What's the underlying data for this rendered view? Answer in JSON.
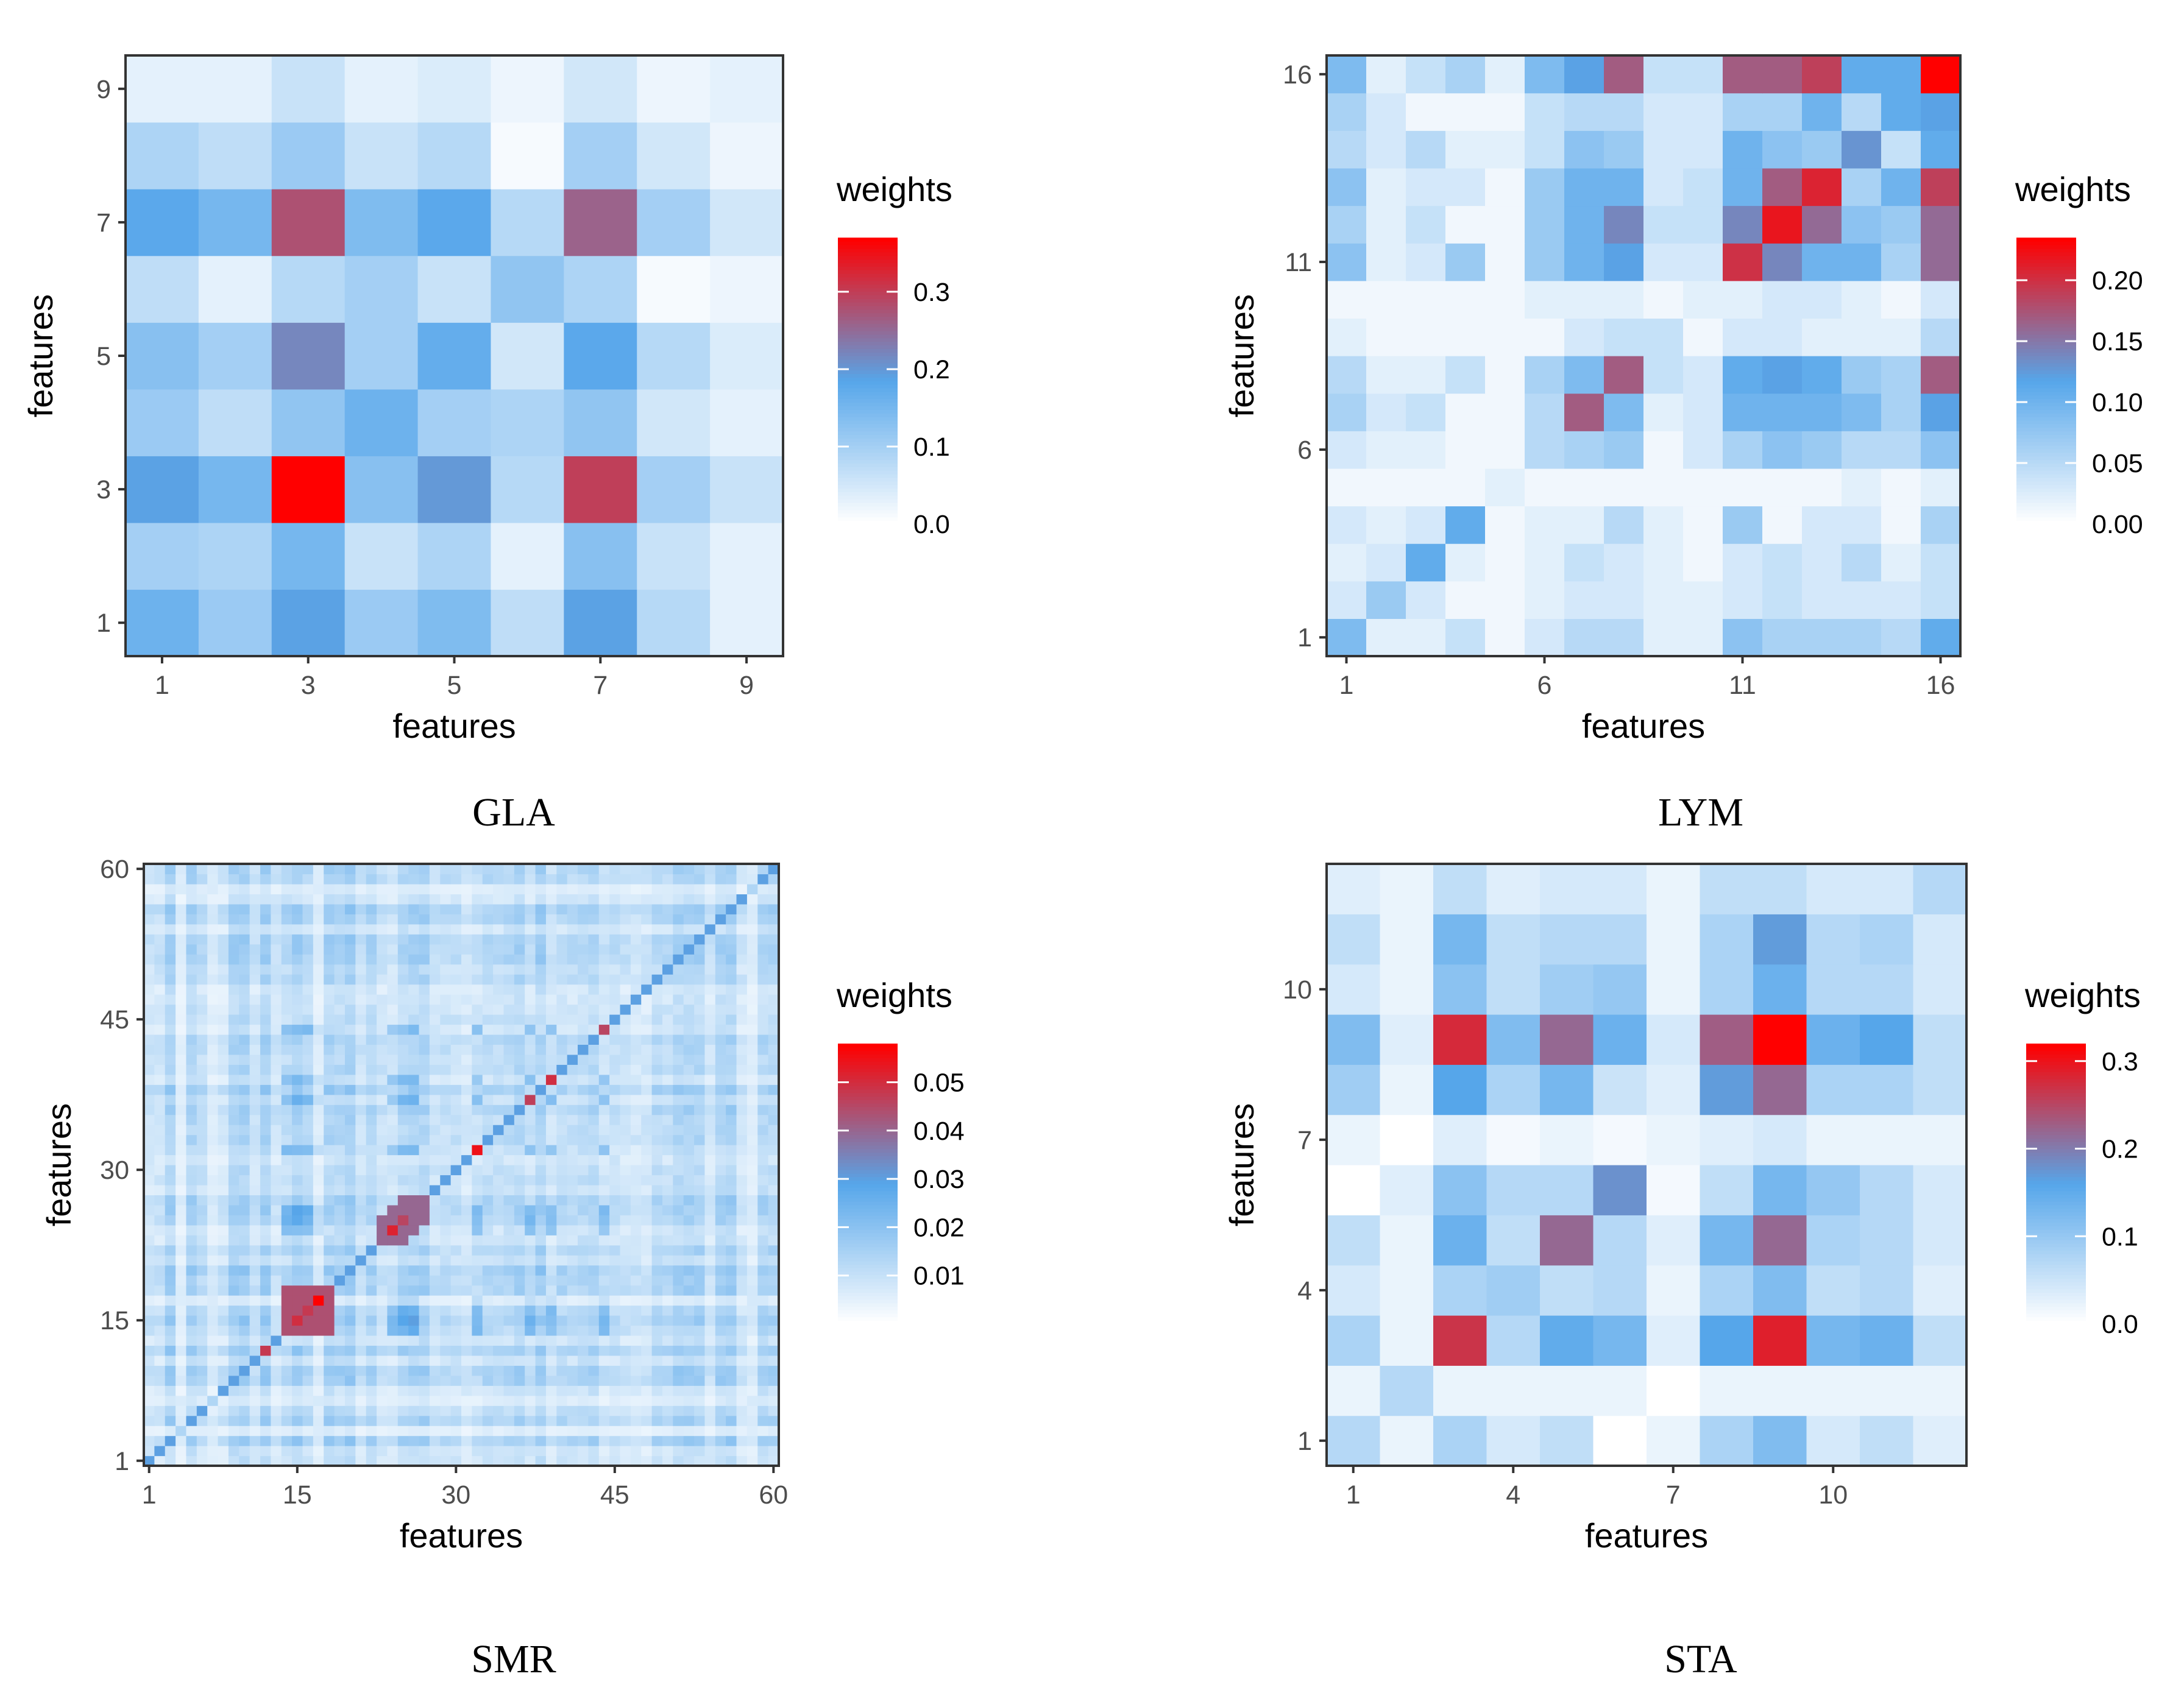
{
  "colors": {
    "low": "#ffffff",
    "mid": "#56a6ea",
    "high": "#ff0000",
    "panel_border": "#333333"
  },
  "chart_data": [
    {
      "type": "heatmap",
      "caption": "GLA",
      "xlabel": "features",
      "ylabel": "features",
      "legend_title": "weights",
      "n": 9,
      "xticks": [
        1,
        3,
        5,
        7,
        9
      ],
      "yticks": [
        1,
        3,
        5,
        7,
        9
      ],
      "legend_ticks": [
        0.0,
        0.1,
        0.2,
        0.3
      ],
      "legend_tick_labels": [
        "0.0",
        "0.1",
        "0.2",
        "0.3"
      ],
      "range": [
        0,
        0.37
      ],
      "values": [
        [
          0.16,
          0.11,
          0.19,
          0.11,
          0.14,
          0.07,
          0.19,
          0.08,
          0.03
        ],
        [
          0.1,
          0.09,
          0.15,
          0.06,
          0.09,
          0.03,
          0.13,
          0.06,
          0.03
        ],
        [
          0.19,
          0.15,
          0.37,
          0.13,
          0.2,
          0.08,
          0.3,
          0.1,
          0.06
        ],
        [
          0.11,
          0.07,
          0.12,
          0.16,
          0.1,
          0.09,
          0.12,
          0.05,
          0.03
        ],
        [
          0.13,
          0.1,
          0.22,
          0.1,
          0.17,
          0.05,
          0.18,
          0.08,
          0.04
        ],
        [
          0.07,
          0.03,
          0.08,
          0.1,
          0.06,
          0.12,
          0.09,
          0.01,
          0.02
        ],
        [
          0.18,
          0.15,
          0.28,
          0.14,
          0.18,
          0.08,
          0.26,
          0.1,
          0.05
        ],
        [
          0.09,
          0.07,
          0.11,
          0.06,
          0.08,
          0.01,
          0.1,
          0.05,
          0.02
        ],
        [
          0.03,
          0.03,
          0.06,
          0.03,
          0.04,
          0.02,
          0.05,
          0.02,
          0.03
        ]
      ]
    },
    {
      "type": "heatmap",
      "caption": "LYM",
      "xlabel": "features",
      "ylabel": "features",
      "legend_title": "weights",
      "n": 16,
      "xticks": [
        1,
        6,
        11,
        16
      ],
      "yticks": [
        1,
        6,
        11,
        16
      ],
      "legend_ticks": [
        0.0,
        0.05,
        0.1,
        0.15,
        0.2
      ],
      "legend_tick_labels": [
        "0.00",
        "0.05",
        "0.10",
        "0.15",
        "0.20"
      ],
      "range": [
        0,
        0.235
      ],
      "values": [
        [
          0.09,
          0.02,
          0.02,
          0.04,
          0.01,
          0.03,
          0.05,
          0.05,
          0.02,
          0.02,
          0.08,
          0.06,
          0.06,
          0.06,
          0.05,
          0.11
        ],
        [
          0.03,
          0.07,
          0.03,
          0.01,
          0.01,
          0.02,
          0.03,
          0.03,
          0.02,
          0.02,
          0.03,
          0.04,
          0.03,
          0.03,
          0.03,
          0.04
        ],
        [
          0.02,
          0.03,
          0.11,
          0.02,
          0.01,
          0.02,
          0.04,
          0.03,
          0.02,
          0.01,
          0.03,
          0.04,
          0.03,
          0.05,
          0.02,
          0.04
        ],
        [
          0.03,
          0.02,
          0.03,
          0.11,
          0.01,
          0.02,
          0.02,
          0.05,
          0.02,
          0.01,
          0.07,
          0.01,
          0.03,
          0.03,
          0.01,
          0.06
        ],
        [
          0.01,
          0.01,
          0.01,
          0.01,
          0.02,
          0.01,
          0.01,
          0.01,
          0.01,
          0.01,
          0.01,
          0.01,
          0.01,
          0.02,
          0.01,
          0.02
        ],
        [
          0.03,
          0.02,
          0.02,
          0.01,
          0.01,
          0.05,
          0.06,
          0.07,
          0.01,
          0.03,
          0.06,
          0.08,
          0.07,
          0.05,
          0.05,
          0.08
        ],
        [
          0.06,
          0.03,
          0.04,
          0.01,
          0.01,
          0.05,
          0.17,
          0.09,
          0.02,
          0.03,
          0.1,
          0.1,
          0.1,
          0.09,
          0.06,
          0.12
        ],
        [
          0.05,
          0.02,
          0.02,
          0.04,
          0.01,
          0.06,
          0.09,
          0.17,
          0.04,
          0.03,
          0.11,
          0.12,
          0.11,
          0.07,
          0.06,
          0.17
        ],
        [
          0.02,
          0.01,
          0.01,
          0.01,
          0.01,
          0.01,
          0.03,
          0.04,
          0.04,
          0.01,
          0.03,
          0.03,
          0.02,
          0.02,
          0.02,
          0.05
        ],
        [
          0.01,
          0.01,
          0.01,
          0.01,
          0.01,
          0.02,
          0.02,
          0.02,
          0.01,
          0.02,
          0.02,
          0.03,
          0.03,
          0.02,
          0.01,
          0.03
        ],
        [
          0.08,
          0.02,
          0.03,
          0.07,
          0.01,
          0.07,
          0.1,
          0.12,
          0.03,
          0.03,
          0.2,
          0.14,
          0.1,
          0.1,
          0.06,
          0.16
        ],
        [
          0.06,
          0.02,
          0.04,
          0.01,
          0.01,
          0.07,
          0.1,
          0.14,
          0.04,
          0.04,
          0.14,
          0.22,
          0.16,
          0.08,
          0.07,
          0.16
        ],
        [
          0.08,
          0.02,
          0.03,
          0.03,
          0.01,
          0.07,
          0.1,
          0.1,
          0.03,
          0.04,
          0.1,
          0.17,
          0.21,
          0.06,
          0.1,
          0.19
        ],
        [
          0.05,
          0.03,
          0.05,
          0.02,
          0.02,
          0.04,
          0.08,
          0.07,
          0.03,
          0.03,
          0.1,
          0.08,
          0.07,
          0.13,
          0.04,
          0.11
        ],
        [
          0.06,
          0.03,
          0.01,
          0.01,
          0.01,
          0.04,
          0.05,
          0.05,
          0.03,
          0.03,
          0.06,
          0.06,
          0.1,
          0.05,
          0.11,
          0.12
        ],
        [
          0.09,
          0.02,
          0.04,
          0.06,
          0.02,
          0.09,
          0.12,
          0.17,
          0.04,
          0.04,
          0.17,
          0.17,
          0.19,
          0.11,
          0.11,
          0.235
        ]
      ]
    },
    {
      "type": "heatmap",
      "caption": "SMR",
      "xlabel": "features",
      "ylabel": "features",
      "legend_title": "weights",
      "n": 60,
      "xticks": [
        1,
        15,
        30,
        45,
        60
      ],
      "yticks": [
        1,
        15,
        30,
        45,
        60
      ],
      "legend_ticks": [
        0.01,
        0.02,
        0.03,
        0.04,
        0.05
      ],
      "legend_tick_labels": [
        "0.01",
        "0.02",
        "0.03",
        "0.04",
        "0.05"
      ],
      "range": [
        0,
        0.058
      ],
      "values_note": "60x60 correlation-style weights: base ~0.01-0.03 with a red block near features 14-18, 24-27, 32, 36-39, 44 and a thin diagonal",
      "peaks": [
        {
          "x": 17,
          "y": 17,
          "value": 0.058
        },
        {
          "x": 15,
          "y": 15,
          "value": 0.05
        },
        {
          "x": 16,
          "y": 16,
          "value": 0.048
        },
        {
          "x": 24,
          "y": 24,
          "value": 0.052
        },
        {
          "x": 25,
          "y": 25,
          "value": 0.046
        },
        {
          "x": 32,
          "y": 32,
          "value": 0.055
        },
        {
          "x": 37,
          "y": 37,
          "value": 0.047
        },
        {
          "x": 39,
          "y": 39,
          "value": 0.05
        },
        {
          "x": 44,
          "y": 44,
          "value": 0.046
        },
        {
          "x": 12,
          "y": 12,
          "value": 0.048
        }
      ]
    },
    {
      "type": "heatmap",
      "caption": "STA",
      "xlabel": "features",
      "ylabel": "features",
      "legend_title": "weights",
      "n": 12,
      "xticks": [
        1,
        4,
        7,
        10
      ],
      "yticks": [
        1,
        4,
        7,
        10
      ],
      "legend_ticks": [
        0.0,
        0.1,
        0.2,
        0.3
      ],
      "legend_tick_labels": [
        "0.0",
        "0.1",
        "0.2",
        "0.3"
      ],
      "range": [
        0,
        0.32
      ],
      "values": [
        [
          0.07,
          0.02,
          0.08,
          0.04,
          0.06,
          0.0,
          0.02,
          0.08,
          0.12,
          0.04,
          0.06,
          0.03
        ],
        [
          0.02,
          0.07,
          0.02,
          0.02,
          0.02,
          0.02,
          0.0,
          0.02,
          0.02,
          0.02,
          0.02,
          0.02
        ],
        [
          0.08,
          0.02,
          0.27,
          0.07,
          0.15,
          0.13,
          0.03,
          0.16,
          0.29,
          0.13,
          0.14,
          0.06
        ],
        [
          0.04,
          0.02,
          0.08,
          0.09,
          0.06,
          0.07,
          0.02,
          0.08,
          0.12,
          0.06,
          0.07,
          0.03
        ],
        [
          0.06,
          0.02,
          0.14,
          0.06,
          0.22,
          0.07,
          0.03,
          0.13,
          0.22,
          0.08,
          0.07,
          0.04
        ],
        [
          0.0,
          0.03,
          0.11,
          0.07,
          0.07,
          0.18,
          0.01,
          0.06,
          0.13,
          0.1,
          0.07,
          0.04
        ],
        [
          0.02,
          0.0,
          0.03,
          0.01,
          0.02,
          0.01,
          0.02,
          0.03,
          0.04,
          0.02,
          0.02,
          0.02
        ],
        [
          0.09,
          0.02,
          0.16,
          0.08,
          0.13,
          0.05,
          0.03,
          0.17,
          0.22,
          0.08,
          0.08,
          0.06
        ],
        [
          0.12,
          0.03,
          0.28,
          0.12,
          0.22,
          0.14,
          0.04,
          0.23,
          0.32,
          0.14,
          0.16,
          0.06
        ],
        [
          0.04,
          0.02,
          0.11,
          0.06,
          0.09,
          0.1,
          0.02,
          0.08,
          0.14,
          0.07,
          0.07,
          0.04
        ],
        [
          0.06,
          0.02,
          0.13,
          0.06,
          0.07,
          0.07,
          0.02,
          0.08,
          0.17,
          0.07,
          0.08,
          0.04
        ],
        [
          0.03,
          0.02,
          0.06,
          0.03,
          0.04,
          0.04,
          0.02,
          0.06,
          0.06,
          0.04,
          0.04,
          0.07
        ]
      ]
    }
  ]
}
